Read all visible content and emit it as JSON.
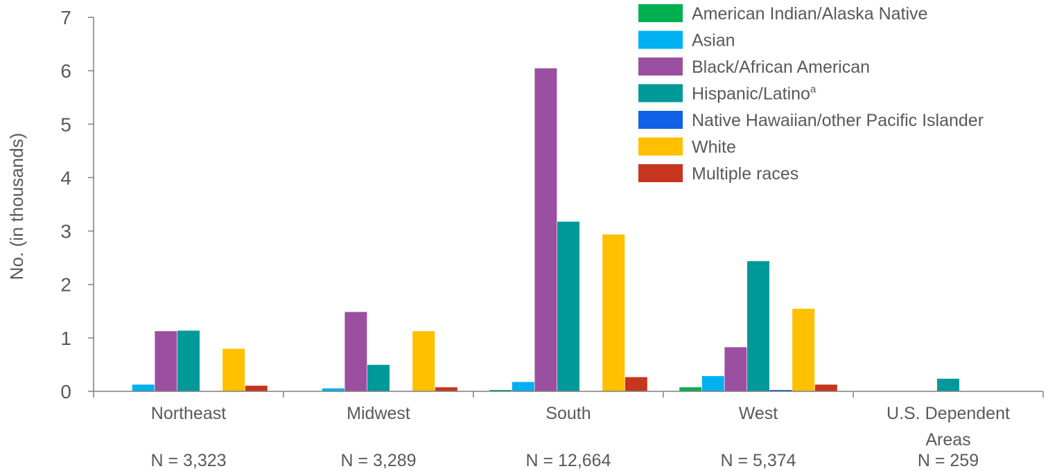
{
  "chart_data": {
    "type": "bar",
    "ylabel": "No. (in thousands)",
    "xlabel": "",
    "ylim": [
      0,
      7
    ],
    "yticks": [
      "0",
      "1",
      "2",
      "3",
      "4",
      "5",
      "6",
      "7"
    ],
    "grid": false,
    "legend_position": "top-right",
    "categories": [
      "Northeast",
      "Midwest",
      "South",
      "West",
      "U.S. Dependent Areas"
    ],
    "category_n": [
      "N = 3,323",
      "N = 3,289",
      "N = 12,664",
      "N = 5,374",
      "N = 259"
    ],
    "series": [
      {
        "name": "American Indian/Alaska Native",
        "color": "#00b050",
        "values": [
          0.005,
          0.01,
          0.03,
          0.08,
          0
        ]
      },
      {
        "name": "Asian",
        "color": "#00b0f0",
        "values": [
          0.13,
          0.06,
          0.18,
          0.29,
          0
        ]
      },
      {
        "name": "Black/African American",
        "color": "#9b4fa0",
        "values": [
          1.13,
          1.49,
          6.05,
          0.83,
          0.005
        ]
      },
      {
        "name": "Hispanic/Latino",
        "name_superscript": "a",
        "color": "#009999",
        "values": [
          1.14,
          0.5,
          3.18,
          2.44,
          0.24
        ]
      },
      {
        "name": "Native Hawaiian/other Pacific Islander",
        "color": "#1060e8",
        "values": [
          0,
          0,
          0.005,
          0.03,
          0
        ]
      },
      {
        "name": "White",
        "color": "#ffc000",
        "values": [
          0.8,
          1.13,
          2.94,
          1.55,
          0.005
        ]
      },
      {
        "name": "Multiple races",
        "color": "#c8351e",
        "values": [
          0.11,
          0.08,
          0.27,
          0.13,
          0
        ]
      }
    ]
  }
}
